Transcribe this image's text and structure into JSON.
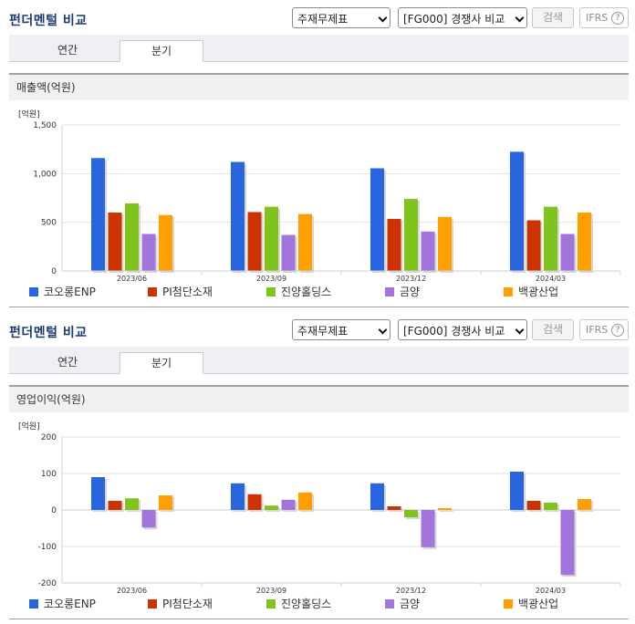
{
  "colors": {
    "series": [
      "#2a65e0",
      "#cc3300",
      "#7fc41c",
      "#a275dc",
      "#ffa000"
    ]
  },
  "panels": [
    {
      "title": "펀더멘털 비교",
      "select_statement": "주재무제표",
      "select_compare": "[FG000] 경쟁사 비교",
      "search_label": "검색",
      "ifrs_label": "IFRS",
      "help_label": "?",
      "tabs": [
        "연간",
        "분기"
      ],
      "active_tab": "분기",
      "section_title": "매출액(억원)"
    },
    {
      "title": "펀더멘털 비교",
      "select_statement": "주재무제표",
      "select_compare": "[FG000] 경쟁사 비교",
      "search_label": "검색",
      "ifrs_label": "IFRS",
      "help_label": "?",
      "tabs": [
        "연간",
        "분기"
      ],
      "active_tab": "분기",
      "section_title": "영업이익(억원)"
    }
  ],
  "chart_data": [
    {
      "type": "bar",
      "unit_label": "[억원]",
      "categories": [
        "2023/06",
        "2023/09",
        "2023/12",
        "2024/03"
      ],
      "ylim": [
        0,
        1500
      ],
      "yticks": [
        0,
        500,
        1000,
        1500
      ],
      "ytick_labels": [
        "0",
        "500",
        "1,000",
        "1,500"
      ],
      "legend_position": "bottom",
      "series": [
        {
          "name": "코오롱ENP",
          "values": [
            1160,
            1120,
            1055,
            1225
          ]
        },
        {
          "name": "PI첨단소재",
          "values": [
            600,
            605,
            535,
            520
          ]
        },
        {
          "name": "진양홀딩스",
          "values": [
            695,
            660,
            740,
            660
          ]
        },
        {
          "name": "금양",
          "values": [
            380,
            370,
            405,
            380
          ]
        },
        {
          "name": "백광산업",
          "values": [
            575,
            585,
            555,
            600
          ]
        }
      ]
    },
    {
      "type": "bar",
      "unit_label": "[억원]",
      "categories": [
        "2023/06",
        "2023/09",
        "2023/12",
        "2024/03"
      ],
      "ylim": [
        -200,
        200
      ],
      "yticks": [
        -200,
        -100,
        0,
        100,
        200
      ],
      "ytick_labels": [
        "-200",
        "-100",
        "0",
        "100",
        "200"
      ],
      "legend_position": "bottom",
      "series": [
        {
          "name": "코오롱ENP",
          "values": [
            90,
            73,
            73,
            105
          ]
        },
        {
          "name": "PI첨단소재",
          "values": [
            25,
            43,
            10,
            25
          ]
        },
        {
          "name": "진양홀딩스",
          "values": [
            32,
            12,
            -20,
            20
          ]
        },
        {
          "name": "금양",
          "values": [
            -48,
            28,
            -102,
            -178
          ]
        },
        {
          "name": "백광산업",
          "values": [
            40,
            48,
            5,
            30
          ]
        }
      ]
    }
  ]
}
